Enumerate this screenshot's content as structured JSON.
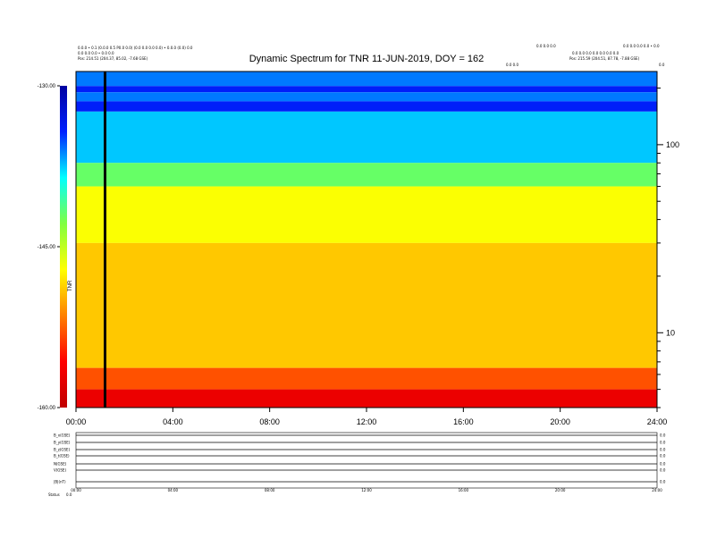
{
  "header": {
    "left_line1": "0.0.0 • 0.1 (0.0.0 0.5 P0.0 0.0) (0.0 0.0 0.0 0.0) • 0.0.0 (0.0) 0.0",
    "left_line2": "0.0 0.0 0.0 • 0.0 0.0",
    "left_pos": "Pos:   214.51 (204.37, 85.02, -7.68 GSE)",
    "right_top_a": "0.0 0.0 0.0",
    "right_top_b": "0.0 0.0 0.0 0.0 • 0.0",
    "right_line2": "0.0 0.0 0.0 0.0 0.0 0.0 0.0",
    "right_pos": "Pos:   215.59 (204.51, 87.78, -7.88 GSE)",
    "corner": "0.0",
    "marker": "0.0 0.0"
  },
  "chart_data": {
    "type": "heatmap",
    "title": "Dynamic Spectrum for TNR 11-JUN-2019, DOY = 162",
    "x": {
      "ticks": [
        "00:00",
        "04:00",
        "08:00",
        "12:00",
        "16:00",
        "20:00",
        "24:00"
      ],
      "range_hours": [
        0,
        24
      ]
    },
    "y": {
      "scale": "log",
      "ticks": [
        "100",
        "10"
      ],
      "tick_values": [
        100,
        10
      ],
      "range": [
        4,
        245
      ]
    },
    "colorbar": {
      "label": "TNR",
      "ticks": [
        "-130.00",
        "-145.00",
        "-160.00"
      ],
      "tick_values": [
        -130,
        -145,
        -160
      ],
      "range": [
        -160,
        -130
      ],
      "colors": [
        "#0000a0",
        "#0020ff",
        "#00ffff",
        "#80ff40",
        "#ffff00",
        "#ff8000",
        "#ff0000",
        "#c00000"
      ]
    },
    "bands": [
      {
        "y_top": 245,
        "y_bottom": 205,
        "level": -136
      },
      {
        "y_top": 205,
        "y_bottom": 190,
        "level": -134
      },
      {
        "y_top": 190,
        "y_bottom": 170,
        "level": -136
      },
      {
        "y_top": 170,
        "y_bottom": 150,
        "level": -134
      },
      {
        "y_top": 150,
        "y_bottom": 80,
        "level": -137.5
      },
      {
        "y_top": 80,
        "y_bottom": 60,
        "level": -142
      },
      {
        "y_top": 60,
        "y_bottom": 30,
        "level": -147
      },
      {
        "y_top": 30,
        "y_bottom": 6.5,
        "level": -149
      },
      {
        "y_top": 6.5,
        "y_bottom": 5,
        "level": -153
      },
      {
        "y_top": 5,
        "y_bottom": 4,
        "level": -157
      }
    ],
    "vertical_line_hour": 1.2
  },
  "lower_panels": {
    "row_labels": [
      "B_x(GSE)",
      "B_y(GSE)",
      "B_z(GSE)",
      "B_t(GSE)",
      "N(GSE)",
      "V(GSE)",
      "|B|(nT)"
    ],
    "right_labels": [
      "0.0",
      "0.0",
      "0.0",
      "0.0",
      "0.0",
      "0.0",
      "0.0"
    ],
    "time_ticks": [
      "00:00",
      "04:00",
      "08:00",
      "12:00",
      "16:00",
      "20:00",
      "24:00"
    ],
    "footer_a": "Status",
    "footer_b": "0.0"
  }
}
